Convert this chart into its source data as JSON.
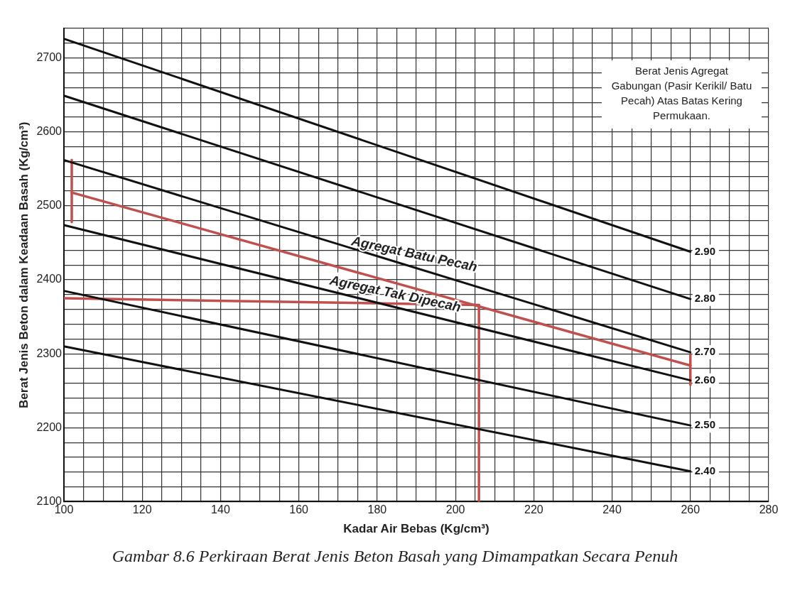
{
  "chart_data": {
    "type": "line",
    "xlabel": "Kadar Air Bebas (Kg/cm³)",
    "ylabel": "Berat Jenis Beton dalam Keadaan Basah (Kg/cm³)",
    "xlim": [
      100,
      280
    ],
    "ylim": [
      2100,
      2740
    ],
    "xticks": [
      100,
      {
        "value": 105,
        "label": null
      },
      {
        "value": 110,
        "label": null
      },
      {
        "value": 115,
        "label": null
      },
      120,
      {
        "value": 125,
        "label": null
      },
      {
        "value": 130,
        "label": null
      },
      {
        "value": 135,
        "label": null
      },
      140,
      {
        "value": 145,
        "label": null
      },
      {
        "value": 150,
        "label": null
      },
      {
        "value": 155,
        "label": null
      },
      160,
      {
        "value": 165,
        "label": null
      },
      {
        "value": 170,
        "label": null
      },
      {
        "value": 175,
        "label": null
      },
      180,
      {
        "value": 185,
        "label": null
      },
      {
        "value": 190,
        "label": null
      },
      {
        "value": 195,
        "label": null
      },
      200,
      {
        "value": 205,
        "label": null
      },
      {
        "value": 210,
        "label": null
      },
      {
        "value": 215,
        "label": null
      },
      220,
      {
        "value": 225,
        "label": null
      },
      {
        "value": 230,
        "label": null
      },
      {
        "value": 235,
        "label": null
      },
      240,
      {
        "value": 245,
        "label": null
      },
      {
        "value": 250,
        "label": null
      },
      {
        "value": 255,
        "label": null
      },
      260,
      {
        "value": 265,
        "label": null
      },
      {
        "value": 270,
        "label": null
      },
      {
        "value": 275,
        "label": null
      },
      280
    ],
    "yticks": [
      2100,
      {
        "value": 2120,
        "label": null
      },
      {
        "value": 2140,
        "label": null
      },
      {
        "value": 2160,
        "label": null
      },
      {
        "value": 2180,
        "label": null
      },
      2200,
      {
        "value": 2220,
        "label": null
      },
      {
        "value": 2240,
        "label": null
      },
      {
        "value": 2260,
        "label": null
      },
      {
        "value": 2280,
        "label": null
      },
      2300,
      {
        "value": 2320,
        "label": null
      },
      {
        "value": 2340,
        "label": null
      },
      {
        "value": 2360,
        "label": null
      },
      {
        "value": 2380,
        "label": null
      },
      2400,
      {
        "value": 2420,
        "label": null
      },
      {
        "value": 2440,
        "label": null
      },
      {
        "value": 2460,
        "label": null
      },
      {
        "value": 2480,
        "label": null
      },
      2500,
      {
        "value": 2520,
        "label": null
      },
      {
        "value": 2540,
        "label": null
      },
      {
        "value": 2560,
        "label": null
      },
      {
        "value": 2580,
        "label": null
      },
      2600,
      {
        "value": 2620,
        "label": null
      },
      {
        "value": 2640,
        "label": null
      },
      {
        "value": 2660,
        "label": null
      },
      {
        "value": 2680,
        "label": null
      },
      2700,
      {
        "value": 2720,
        "label": null
      },
      {
        "value": 2740,
        "label": null
      }
    ],
    "grid": true,
    "legend": false,
    "marker": "none",
    "line_style": "solid",
    "series": [
      {
        "name": "2.90",
        "color": "#111111",
        "x": [
          100,
          260
        ],
        "values": [
          2726,
          2438
        ]
      },
      {
        "name": "2.80",
        "color": "#111111",
        "x": [
          100,
          260
        ],
        "values": [
          2649,
          2374
        ]
      },
      {
        "name": "2.70",
        "color": "#111111",
        "x": [
          100,
          260
        ],
        "values": [
          2562,
          2302
        ]
      },
      {
        "name": "2.60",
        "color": "#111111",
        "x": [
          100,
          260
        ],
        "values": [
          2474,
          2264
        ]
      },
      {
        "name": "2.50",
        "color": "#111111",
        "x": [
          100,
          260
        ],
        "values": [
          2385,
          2203
        ]
      },
      {
        "name": "2.40",
        "color": "#111111",
        "x": [
          100,
          260
        ],
        "values": [
          2310,
          2141
        ]
      },
      {
        "color": "#c0504d",
        "x": [
          102,
          260
        ],
        "values": [
          2518,
          2284
        ]
      },
      {
        "color": "#c0504d",
        "x": [
          102,
          102
        ],
        "values": [
          2562,
          2478
        ]
      },
      {
        "color": "#c0504d",
        "x": [
          260,
          260
        ],
        "values": [
          2298,
          2258
        ]
      },
      {
        "color": "#c0504d",
        "x": [
          100,
          206
        ],
        "values": [
          2375,
          2366
        ]
      },
      {
        "color": "#c0504d",
        "x": [
          206,
          206
        ],
        "values": [
          2366,
          2100
        ]
      }
    ],
    "annotations": [
      "Berat Jenis Agregat Gabungan (Pasir Kerikil/ Batu Pecah) Atas Batas Kering Permukaan.",
      "Agregat Batu Pecah",
      "Agregat Tak Dipecah",
      "Gambar 8.6 Perkiraan Berat Jenis Beton Basah yang Dimampatkan Secara Penuh"
    ]
  }
}
